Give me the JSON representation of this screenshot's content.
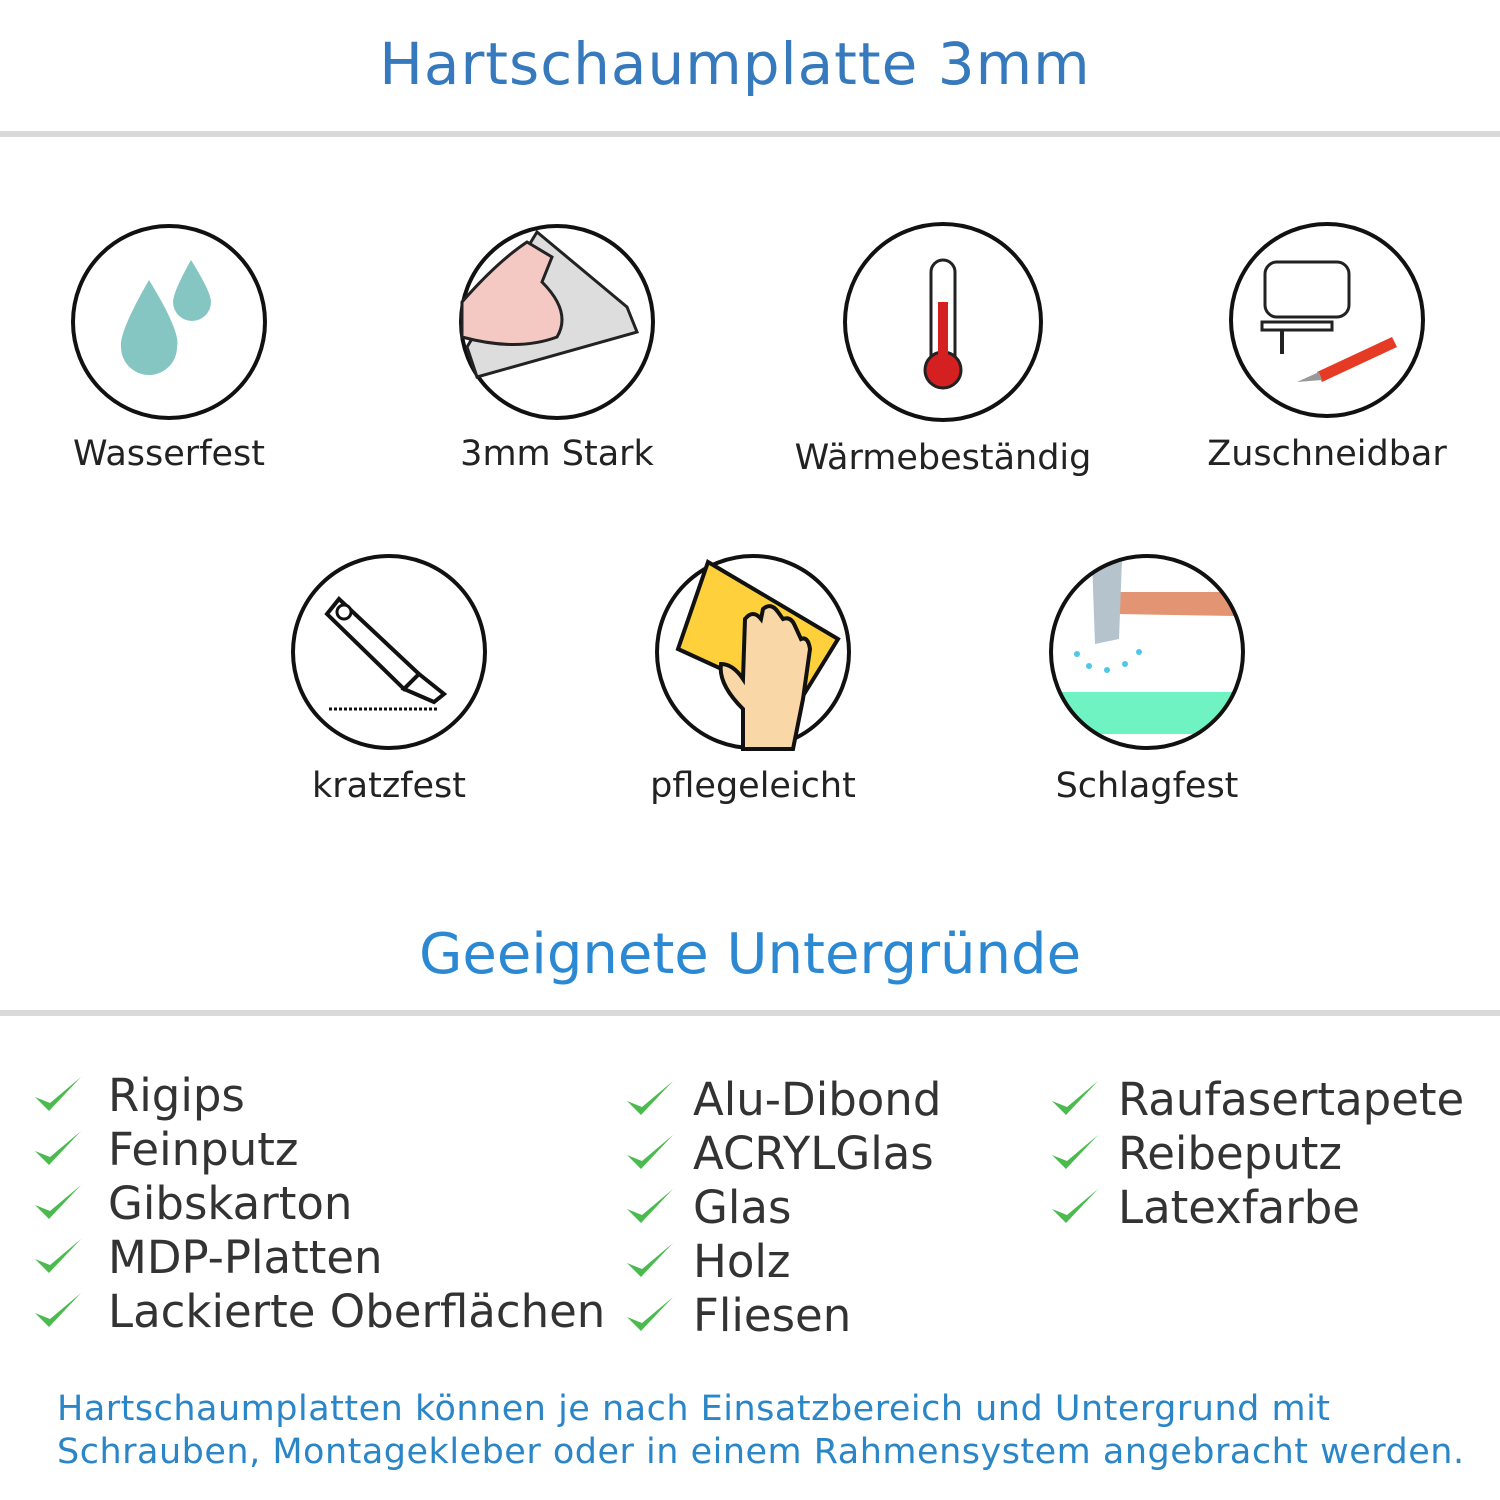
{
  "title": "Hartschaumplatte 3mm",
  "features": [
    {
      "label": "Wasserfest",
      "icon": "water-drops-icon"
    },
    {
      "label": "3mm Stark",
      "icon": "strong-arm-icon"
    },
    {
      "label": "Wärmebeständig",
      "icon": "thermometer-icon"
    },
    {
      "label": "Zuschneidbar",
      "icon": "jigsaw-knife-icon"
    },
    {
      "label": "kratzfest",
      "icon": "cutter-knife-icon"
    },
    {
      "label": "pflegeleicht",
      "icon": "wiping-hand-icon"
    },
    {
      "label": "Schlagfest",
      "icon": "hammer-icon"
    }
  ],
  "surfaces_title": "Geeignete Untergründe",
  "surfaces": {
    "col1": [
      "Rigips",
      "Feinputz",
      "Gibskarton",
      "MDP-Platten",
      "Lackierte Oberflächen"
    ],
    "col2": [
      "Alu-Dibond",
      "ACRYLGlas",
      "Glas",
      "Holz",
      "Fliesen"
    ],
    "col3": [
      "Raufasertapete",
      "Reibeputz",
      "Latexfarbe"
    ]
  },
  "note": {
    "line1": "Hartschaumplatten können je nach Einsatzbereich und Untergrund mit",
    "line2": "Schrauben, Montagekleber oder in einem Rahmensystem angebracht werden."
  },
  "colors": {
    "title": "#3679bd",
    "heading": "#2b88d2",
    "check": "#4cbb4f",
    "note": "#2b86c8"
  }
}
